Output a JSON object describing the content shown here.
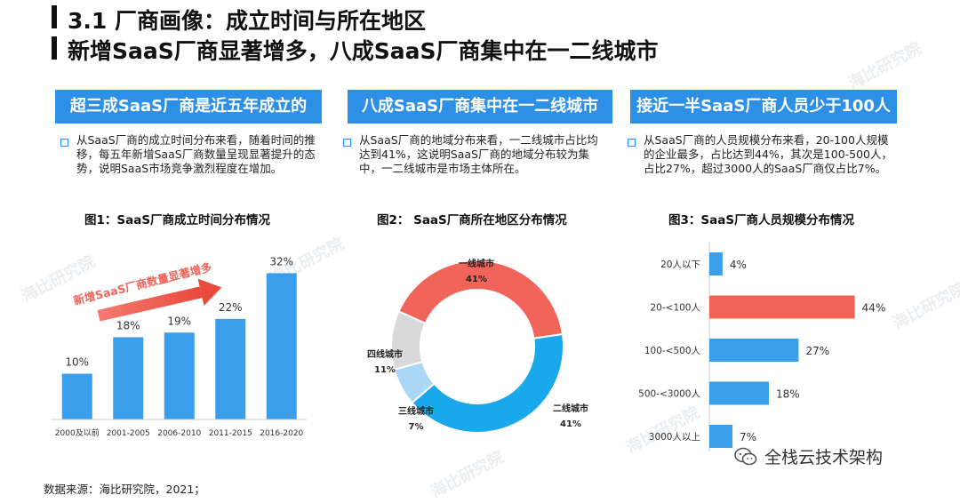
{
  "header": {
    "title_line1": "3.1 厂商画像：成立时间与所在地区",
    "title_line2": "新增SaaS厂商显著增多，八成SaaS厂商集中在一二线城市"
  },
  "colors": {
    "accent_blue": "#2d8fe6",
    "bar_blue": "#3a9eea",
    "red": "#f0645a",
    "light_blue": "#aad7f5",
    "gray": "#d9d9d9",
    "cyan": "#1aa8ec"
  },
  "panels": [
    {
      "banner": "超三成SaaS厂商是近五年成立的",
      "desc": "从SaaS厂商的成立时间分布来看，随着时间的推移，每五年新增SaaS厂商数量呈现显著提升的态势，说明SaaS市场竞争激烈程度在增加。",
      "fig_title": "图1：SaaS厂商成立时间分布情况"
    },
    {
      "banner": "八成SaaS厂商集中在一二线城市",
      "desc": "从SaaS厂商的地域分布来看，一二线城市占比均达到41%，这说明SaaS厂商的地域分布较为集中，一二线城市是市场主体所在。",
      "fig_title": "图2： SaaS厂商所在地区分布情况"
    },
    {
      "banner": "接近一半SaaS厂商人员少于100人",
      "desc": "从SaaS厂商的人员规模分布来看，20-100人规模的企业最多，占比达到44%，其次是100-500人，占比27%，超过3000人的SaaS厂商仅占比7%。",
      "fig_title": "图3：SaaS厂商人员规模分布情况"
    }
  ],
  "chart_data": [
    {
      "type": "bar",
      "categories": [
        "2000及以前",
        "2001-2005",
        "2006-2010",
        "2011-2015",
        "2016-2020"
      ],
      "values": [
        10,
        18,
        19,
        22,
        32
      ],
      "value_labels": [
        "10%",
        "18%",
        "19%",
        "22%",
        "32%"
      ],
      "ylim": [
        0,
        35
      ],
      "annotation": "新增SaaS厂商数量显著增多",
      "grid": false
    },
    {
      "type": "pie",
      "donut": true,
      "slices": [
        {
          "label": "一线城市",
          "value": 41,
          "value_label": "41%",
          "color": "#f0645a"
        },
        {
          "label": "二线城市",
          "value": 41,
          "value_label": "41%",
          "color": "#1aa8ec"
        },
        {
          "label": "三线城市",
          "value": 7,
          "value_label": "7%",
          "color": "#aad7f5"
        },
        {
          "label": "四线城市",
          "value": 11,
          "value_label": "11%",
          "color": "#d9d9d9"
        }
      ]
    },
    {
      "type": "bar",
      "orientation": "horizontal",
      "categories": [
        "20人以下",
        "20-<100人",
        "100-<500人",
        "500-<3000人",
        "3000人以上"
      ],
      "values": [
        4,
        44,
        27,
        18,
        7
      ],
      "value_labels": [
        "4%",
        "44%",
        "27%",
        "18%",
        "7%"
      ],
      "highlight_index": 1,
      "xlim": [
        0,
        50
      ],
      "grid": false
    }
  ],
  "footer": {
    "source": "数据来源：海比研究院，2021；",
    "wechat_label": "全栈云技术架构",
    "wechat_icon": "wechat-icon"
  },
  "watermark": "海比研究院"
}
